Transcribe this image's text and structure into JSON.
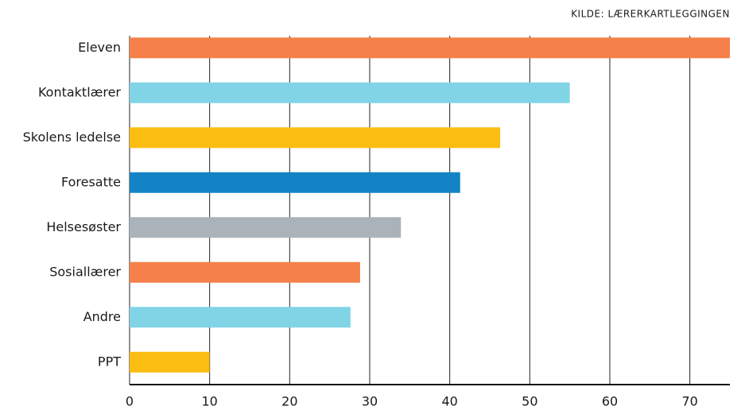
{
  "chart_data": {
    "type": "barh",
    "source": "KILDE: LÆRERKARTLEGGINGEN",
    "categories": [
      "Eleven",
      "Kontaktlærer",
      "Skolens ledelse",
      "Foresatte",
      "Helsesøster",
      "Sosiallærer",
      "Andre",
      "PPT"
    ],
    "values": [
      75,
      55,
      46.3,
      41.3,
      33.9,
      28.8,
      27.6,
      10
    ],
    "colors": [
      "#f5804a",
      "#80d4e6",
      "#fbbd12",
      "#1383c6",
      "#a9b3b9",
      "#f5804a",
      "#80d4e6",
      "#fbbd12"
    ],
    "xlim": [
      0,
      75
    ],
    "xticks": [
      0,
      10,
      20,
      30,
      40,
      50,
      60,
      70
    ],
    "grid": true
  }
}
